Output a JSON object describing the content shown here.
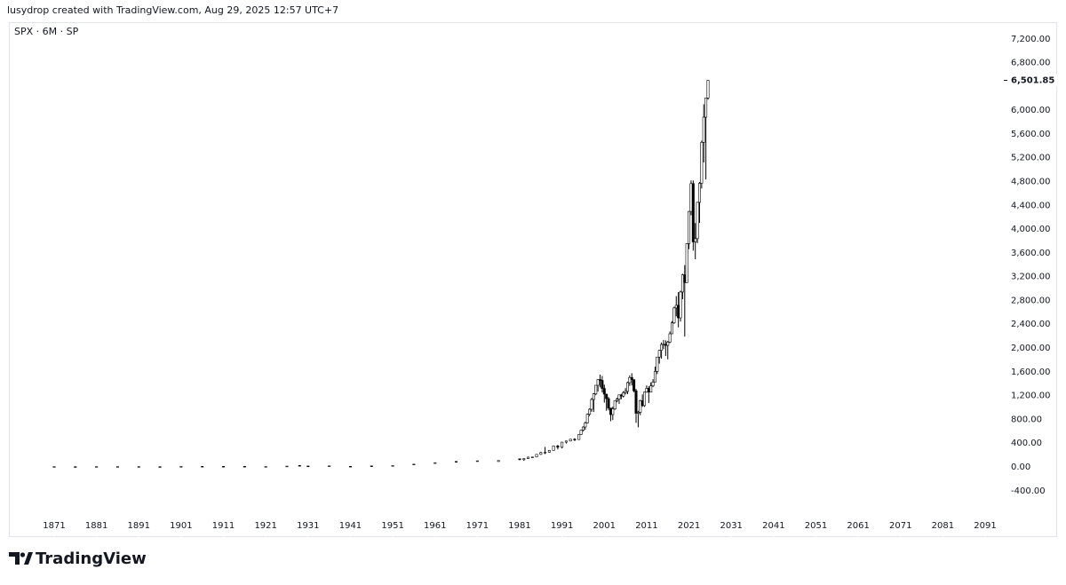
{
  "header": "lusydrop created with TradingView.com, Aug 29, 2025 12:57 UTC+7",
  "footer": {
    "brand": "TradingView"
  },
  "chart_data": {
    "type": "candlestick",
    "legend": "SPX · 6M · SP",
    "up_color": "#ffffff",
    "down_color": "#000000",
    "border_color": "#000000",
    "grid": false,
    "xlim": [
      1860.3,
      2095.4
    ],
    "xticks": [
      1871,
      1881,
      1891,
      1901,
      1911,
      1921,
      1931,
      1941,
      1951,
      1961,
      1971,
      1981,
      1991,
      2001,
      2011,
      2021,
      2031,
      2041,
      2051,
      2061,
      2071,
      2081,
      2091
    ],
    "ylim": [
      -1180,
      7480
    ],
    "yticks": [
      {
        "value": -400,
        "label": "-400.00"
      },
      {
        "value": 0,
        "label": "0.00"
      },
      {
        "value": 400,
        "label": "400.00"
      },
      {
        "value": 800,
        "label": "800.00"
      },
      {
        "value": 1200,
        "label": "1,200.00"
      },
      {
        "value": 1600,
        "label": "1,600.00"
      },
      {
        "value": 2000,
        "label": "2,000.00"
      },
      {
        "value": 2400,
        "label": "2,400.00"
      },
      {
        "value": 2800,
        "label": "2,800.00"
      },
      {
        "value": 3200,
        "label": "3,200.00"
      },
      {
        "value": 3600,
        "label": "3,600.00"
      },
      {
        "value": 4000,
        "label": "4,000.00"
      },
      {
        "value": 4400,
        "label": "4,400.00"
      },
      {
        "value": 4800,
        "label": "4,800.00"
      },
      {
        "value": 5200,
        "label": "5,200.00"
      },
      {
        "value": 5600,
        "label": "5,600.00"
      },
      {
        "value": 6000,
        "label": "6,000.00"
      },
      {
        "value": 6800,
        "label": "6,800.00"
      },
      {
        "value": 7200,
        "label": "7,200.00"
      }
    ],
    "last_price": {
      "value": 6501.85,
      "label": "6,501.85"
    },
    "x": [
      1871,
      1876,
      1881,
      1886,
      1891,
      1896,
      1901,
      1906,
      1911,
      1916,
      1921,
      1926,
      1929,
      1931,
      1936,
      1941,
      1946,
      1951,
      1956,
      1961,
      1966,
      1971,
      1976,
      1981,
      1982,
      1983,
      1984,
      1985,
      1986,
      1987,
      1988,
      1989,
      1990,
      1991,
      1992,
      1993,
      1994,
      1995.0,
      1995.5,
      1996.0,
      1996.5,
      1997.0,
      1997.5,
      1998.0,
      1998.5,
      1999.0,
      1999.5,
      2000.0,
      2000.5,
      2001.0,
      2001.5,
      2002.0,
      2002.5,
      2003.0,
      2003.5,
      2004.0,
      2004.5,
      2005.0,
      2005.5,
      2006.0,
      2006.5,
      2007.0,
      2007.5,
      2008.0,
      2008.5,
      2009.0,
      2009.5,
      2010.0,
      2010.5,
      2011.0,
      2011.5,
      2012.0,
      2012.5,
      2013.0,
      2013.5,
      2014.0,
      2014.5,
      2015.0,
      2015.5,
      2016.0,
      2016.5,
      2017.0,
      2017.5,
      2018.0,
      2018.5,
      2019.0,
      2019.5,
      2020.0,
      2020.5,
      2021.0,
      2021.5,
      2022.0,
      2022.5,
      2023.0,
      2023.5,
      2024.0,
      2024.5,
      2025.0,
      2025.5
    ],
    "open": [
      4.4,
      4.3,
      6.2,
      5.3,
      4.8,
      4.4,
      8.0,
      9.5,
      9.2,
      9.5,
      7.0,
      13,
      24,
      15,
      13,
      10,
      17,
      21,
      45,
      58,
      92,
      92,
      90,
      136,
      122,
      140,
      164,
      167,
      211,
      242,
      247,
      278,
      353,
      330,
      417,
      436,
      466,
      459,
      545,
      616,
      671,
      741,
      885,
      970,
      1134,
      1229,
      1373,
      1469,
      1455,
      1320,
      1224,
      1148,
      990,
      880,
      975,
      1112,
      1141,
      1212,
      1191,
      1248,
      1270,
      1418,
      1503,
      1468,
      1280,
      903,
      919,
      1115,
      1031,
      1258,
      1321,
      1258,
      1362,
      1426,
      1606,
      1848,
      1960,
      2059,
      2063,
      2044,
      2099,
      2239,
      2423,
      2674,
      2718,
      2507,
      2942,
      3231,
      3100,
      3756,
      4298,
      4766,
      3785,
      3840,
      4450,
      4770,
      5460,
      5882,
      6205
    ],
    "high": [
      4.6,
      4.4,
      6.6,
      6.0,
      5.5,
      4.7,
      8.7,
      10.0,
      9.6,
      10.2,
      7.6,
      14,
      31,
      18,
      17,
      11,
      19,
      24,
      49,
      72,
      94,
      104,
      107,
      140,
      143,
      172,
      170,
      212,
      254,
      337,
      284,
      360,
      369,
      418,
      442,
      471,
      482,
      546,
      622,
      681,
      760,
      898,
      983,
      1160,
      1242,
      1373,
      1474,
      1553,
      1530,
      1383,
      1227,
      1176,
      991,
      1015,
      1112,
      1163,
      1217,
      1229,
      1275,
      1326,
      1431,
      1540,
      1576,
      1471,
      1313,
      943,
      1130,
      1220,
      1263,
      1370,
      1356,
      1422,
      1475,
      1687,
      1849,
      1968,
      2093,
      2135,
      2129,
      2120,
      2278,
      2454,
      2695,
      2873,
      2941,
      2964,
      3248,
      3394,
      3760,
      4302,
      4818,
      4819,
      4101,
      4458,
      4793,
      5488,
      6100,
      6147,
      6508
    ],
    "low": [
      4.3,
      3.8,
      6.0,
      5.2,
      4.7,
      3.9,
      7.7,
      8.5,
      8.8,
      8.5,
      6.5,
      12,
      21,
      8,
      13,
      8.5,
      14,
      21,
      43,
      57,
      73,
      90,
      90,
      112,
      102,
      138,
      147,
      163,
      203,
      216,
      243,
      275,
      295,
      311,
      394,
      429,
      435,
      457,
      539,
      598,
      625,
      733,
      855,
      927,
      923,
      1205,
      1268,
      1339,
      1254,
      1081,
      945,
      953,
      768,
      788,
      960,
      1087,
      1060,
      1137,
      1168,
      1219,
      1224,
      1363,
      1370,
      1256,
      741,
      667,
      869,
      1011,
      1010,
      1249,
      1075,
      1258,
      1343,
      1426,
      1560,
      1737,
      1821,
      1981,
      1867,
      1810,
      2084,
      2245,
      2407,
      2533,
      2347,
      2444,
      2822,
      2192,
      3127,
      3663,
      4233,
      3637,
      3492,
      3764,
      4104,
      4683,
      5120,
      4835,
      6177
    ],
    "close": [
      4.5,
      3.9,
      6.3,
      5.9,
      5.3,
      4.3,
      8.3,
      9.0,
      9.0,
      8.7,
      7.3,
      13.5,
      22,
      8.3,
      17,
      8.7,
      15,
      23,
      46,
      71,
      80,
      102,
      107,
      122,
      140,
      164,
      167,
      211,
      242,
      247,
      278,
      353,
      330,
      417,
      436,
      466,
      459,
      545,
      616,
      671,
      741,
      885,
      970,
      1134,
      1229,
      1373,
      1469,
      1455,
      1320,
      1224,
      1148,
      990,
      880,
      975,
      1112,
      1141,
      1212,
      1191,
      1248,
      1270,
      1418,
      1503,
      1468,
      1280,
      903,
      919,
      1115,
      1031,
      1258,
      1321,
      1258,
      1362,
      1426,
      1606,
      1848,
      1960,
      2059,
      2063,
      2044,
      2099,
      2239,
      2423,
      2674,
      2718,
      2507,
      2942,
      3231,
      3100,
      3756,
      4298,
      4766,
      3785,
      3840,
      4450,
      4770,
      5460,
      5882,
      6205,
      6501.85
    ]
  }
}
